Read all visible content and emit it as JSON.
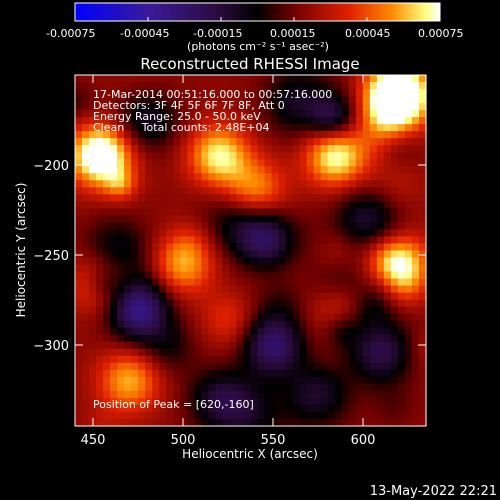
{
  "colorbar": {
    "ticks": [
      "-0.00075",
      "-0.00045",
      "-0.00015",
      "0.00015",
      "0.00045",
      "0.00075"
    ],
    "unit_label": "(photons cm⁻² s⁻¹ asec⁻²)",
    "range": [
      -0.00075,
      0.00075
    ]
  },
  "annotations": {
    "line1": "17-Mar-2014 00:51:16.000 to 00:57:16.000",
    "line2": "Detectors: 3F 4F 5F 6F 7F 8F, Att 0",
    "line3": "Energy Range: 25.0 - 50.0 keV",
    "line4": "Clean     Total counts: 2.48E+04",
    "peak": "Position of Peak = [620,-160]"
  },
  "footer_date": "13-May-2022 22:21",
  "chart_data": {
    "type": "heatmap",
    "title": "Reconstructed RHESSI Image",
    "xlabel": "Heliocentric X (arcsec)",
    "ylabel": "Heliocentric Y (arcsec)",
    "xlim": [
      440,
      635
    ],
    "ylim": [
      -345,
      -150
    ],
    "xticks": [
      450,
      500,
      550,
      600
    ],
    "yticks": [
      -200,
      -250,
      -300
    ],
    "colorscale": [
      "#0000ff",
      "#3a1a9a",
      "#2a0a3a",
      "#000000",
      "#700000",
      "#e02000",
      "#ff8c00",
      "#ffff80",
      "#ffffff"
    ],
    "peak_position": [
      620,
      -160
    ],
    "hot_spots": [
      {
        "x": 620,
        "y": -160,
        "level": 0.00075
      },
      {
        "x": 455,
        "y": -195,
        "level": 0.0006
      },
      {
        "x": 585,
        "y": -195,
        "level": 0.00055
      },
      {
        "x": 620,
        "y": -255,
        "level": 0.0004
      },
      {
        "x": 520,
        "y": -195,
        "level": 0.0005
      },
      {
        "x": 470,
        "y": -320,
        "level": 0.0004
      },
      {
        "x": 500,
        "y": -255,
        "level": 0.0004
      },
      {
        "x": 590,
        "y": -285,
        "level": 0.0003
      },
      {
        "x": 540,
        "y": -215,
        "level": 0.0004
      },
      {
        "x": 455,
        "y": -265,
        "level": 0.00035
      }
    ],
    "cold_spots": [
      {
        "x": 475,
        "y": -280,
        "level": -0.0006
      },
      {
        "x": 550,
        "y": -300,
        "level": -0.0005
      },
      {
        "x": 545,
        "y": -240,
        "level": -0.0004
      },
      {
        "x": 575,
        "y": -330,
        "level": -0.0004
      },
      {
        "x": 600,
        "y": -230,
        "level": -0.0003
      },
      {
        "x": 480,
        "y": -175,
        "level": -0.0003
      },
      {
        "x": 520,
        "y": -330,
        "level": -0.0003
      },
      {
        "x": 610,
        "y": -305,
        "level": -0.0003
      }
    ]
  }
}
